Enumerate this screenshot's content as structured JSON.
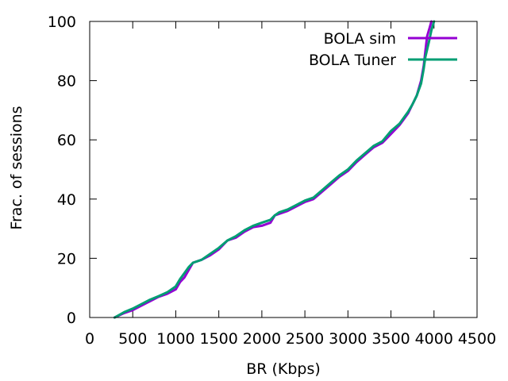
{
  "chart_data": {
    "type": "line",
    "title": "",
    "xlabel": "BR (Kbps)",
    "ylabel": "Frac. of sessions",
    "xlim": [
      0,
      4500
    ],
    "ylim": [
      0,
      100
    ],
    "xticks": [
      0,
      500,
      1000,
      1500,
      2000,
      2500,
      3000,
      3500,
      4000,
      4500
    ],
    "yticks": [
      0,
      20,
      40,
      60,
      80,
      100
    ],
    "grid": false,
    "legend_position": "top-right",
    "series": [
      {
        "name": "BOLA sim",
        "color": "#9400d3",
        "points": [
          [
            290,
            0
          ],
          [
            400,
            1.5
          ],
          [
            500,
            2.5
          ],
          [
            600,
            4
          ],
          [
            700,
            5.5
          ],
          [
            800,
            7
          ],
          [
            900,
            8
          ],
          [
            1000,
            9.5
          ],
          [
            1050,
            12
          ],
          [
            1100,
            13.5
          ],
          [
            1150,
            16
          ],
          [
            1200,
            18.5
          ],
          [
            1300,
            19.5
          ],
          [
            1400,
            21
          ],
          [
            1500,
            23
          ],
          [
            1600,
            26
          ],
          [
            1700,
            27
          ],
          [
            1800,
            29
          ],
          [
            1900,
            30.5
          ],
          [
            2000,
            31
          ],
          [
            2100,
            32
          ],
          [
            2150,
            34.5
          ],
          [
            2200,
            35
          ],
          [
            2300,
            36
          ],
          [
            2400,
            37.5
          ],
          [
            2500,
            39
          ],
          [
            2600,
            40
          ],
          [
            2700,
            42.5
          ],
          [
            2800,
            45
          ],
          [
            2900,
            47.5
          ],
          [
            3000,
            49.5
          ],
          [
            3100,
            52.5
          ],
          [
            3200,
            55
          ],
          [
            3300,
            57.5
          ],
          [
            3400,
            59
          ],
          [
            3500,
            62
          ],
          [
            3600,
            65
          ],
          [
            3700,
            69
          ],
          [
            3750,
            72
          ],
          [
            3800,
            75
          ],
          [
            3850,
            80
          ],
          [
            3880,
            85
          ],
          [
            3900,
            90
          ],
          [
            3920,
            95
          ],
          [
            3950,
            98
          ],
          [
            3970,
            100
          ]
        ]
      },
      {
        "name": "BOLA Tuner",
        "color": "#009e73",
        "points": [
          [
            290,
            0
          ],
          [
            400,
            1.8
          ],
          [
            500,
            3
          ],
          [
            600,
            4.5
          ],
          [
            700,
            6
          ],
          [
            800,
            7.2
          ],
          [
            900,
            8.5
          ],
          [
            1000,
            10.5
          ],
          [
            1050,
            13
          ],
          [
            1100,
            15
          ],
          [
            1150,
            17
          ],
          [
            1200,
            18.5
          ],
          [
            1300,
            19.5
          ],
          [
            1400,
            21.5
          ],
          [
            1500,
            23.5
          ],
          [
            1600,
            26
          ],
          [
            1700,
            27.5
          ],
          [
            1800,
            29.5
          ],
          [
            1900,
            31
          ],
          [
            2000,
            32
          ],
          [
            2100,
            33
          ],
          [
            2150,
            34.5
          ],
          [
            2200,
            35.5
          ],
          [
            2300,
            36.5
          ],
          [
            2400,
            38
          ],
          [
            2500,
            39.5
          ],
          [
            2600,
            40.5
          ],
          [
            2700,
            43
          ],
          [
            2800,
            45.5
          ],
          [
            2900,
            48
          ],
          [
            3000,
            50
          ],
          [
            3100,
            53
          ],
          [
            3200,
            55.5
          ],
          [
            3300,
            58
          ],
          [
            3400,
            59.5
          ],
          [
            3500,
            63
          ],
          [
            3600,
            65.5
          ],
          [
            3700,
            69.5
          ],
          [
            3750,
            72
          ],
          [
            3800,
            75
          ],
          [
            3850,
            79
          ],
          [
            3880,
            84
          ],
          [
            3900,
            88
          ],
          [
            3940,
            93
          ],
          [
            3970,
            97
          ],
          [
            4000,
            100
          ]
        ]
      }
    ]
  }
}
